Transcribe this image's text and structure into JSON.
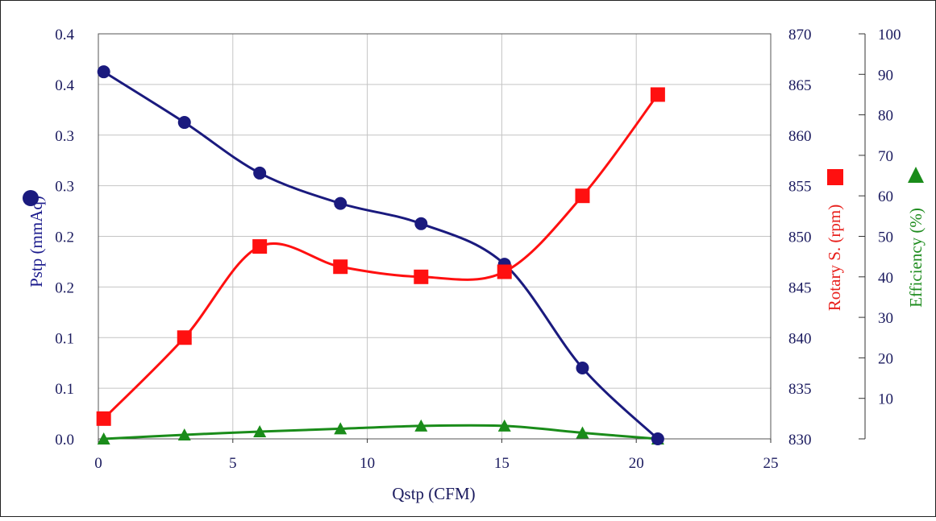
{
  "chart_data": {
    "type": "line",
    "xlabel": "Qstp (CFM)",
    "xlim": [
      0,
      25
    ],
    "x_ticks": [
      "0",
      "5",
      "10",
      "15",
      "20",
      "25"
    ],
    "grid": true,
    "axes": {
      "left": {
        "label": "Pstp (mmAq)",
        "ylim": [
          0,
          0.8
        ],
        "tick_labels": [
          "0.0",
          "0.1",
          "0.1",
          "0.2",
          "0.2",
          "0.3",
          "0.3",
          "0.4",
          "0.4"
        ],
        "color": "#1a1a8c"
      },
      "right1": {
        "label": "Rotary S. (rpm)",
        "ylim": [
          830,
          870
        ],
        "tick_labels": [
          "830",
          "835",
          "840",
          "845",
          "850",
          "855",
          "860",
          "865",
          "870"
        ],
        "color": "#e8201c"
      },
      "right2": {
        "label": "Efficiency (%)",
        "ylim": [
          0,
          100
        ],
        "tick_labels": [
          "10",
          "20",
          "30",
          "40",
          "50",
          "60",
          "70",
          "80",
          "90",
          "100"
        ],
        "color": "#1e8c1e"
      }
    },
    "series": [
      {
        "axis": "left",
        "marker": "circle",
        "color": "#1a1a7e",
        "x": [
          0.2,
          3.2,
          6.0,
          9.0,
          12.0,
          15.1,
          18.0,
          20.8
        ],
        "y": [
          0.725,
          0.625,
          0.525,
          0.465,
          0.425,
          0.345,
          0.14,
          0.0
        ]
      },
      {
        "axis": "right1",
        "marker": "square",
        "color": "#ff1010",
        "x": [
          0.2,
          3.2,
          6.0,
          9.0,
          12.0,
          15.1,
          18.0,
          20.8
        ],
        "y": [
          832.0,
          840.0,
          849.0,
          847.0,
          846.0,
          846.5,
          854.0,
          864.0
        ]
      },
      {
        "axis": "right2",
        "marker": "triangle",
        "color": "#1a8c1a",
        "x": [
          0.2,
          3.2,
          6.0,
          9.0,
          12.0,
          15.1,
          18.0,
          20.8
        ],
        "y": [
          0.0,
          1.0,
          1.8,
          2.5,
          3.2,
          3.2,
          1.5,
          0.0
        ]
      }
    ]
  }
}
